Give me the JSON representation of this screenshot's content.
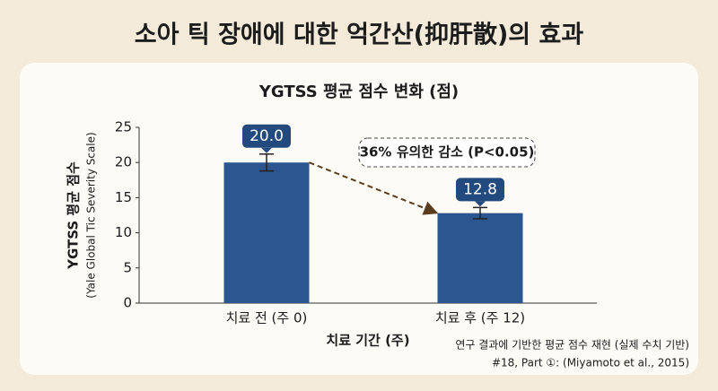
{
  "page_title": "소아 틱 장애에 대한 억간산(抑肝散)의 효과",
  "chart_data": {
    "type": "bar",
    "title": "YGTSS 평균 점수 변화 (점)",
    "ylabel": "YGTSS 평균 점수",
    "ylabel_sub": "(Yale Global Tic Severity Scale)",
    "xlabel": "치료 기간 (주)",
    "categories": [
      "치료 전 (주 0)",
      "치료 후 (주 12)"
    ],
    "values": [
      20,
      12.8
    ],
    "value_labels": [
      "20.0",
      "12.8"
    ],
    "errors": [
      1.2,
      0.8
    ],
    "color": "#2b5690",
    "label_color": "#234a7e",
    "ylim": [
      0,
      25
    ],
    "yticks": [
      0,
      5,
      10,
      15,
      20,
      25
    ],
    "grid": false,
    "annotation": "36% 유의한 감소 (P<0.05)",
    "footnotes": [
      "연구 결과에 기반한 평균 점수 재현 (실제 수치 기반)",
      "#18, Part ①: (Miyamoto et al., 2015)"
    ]
  }
}
